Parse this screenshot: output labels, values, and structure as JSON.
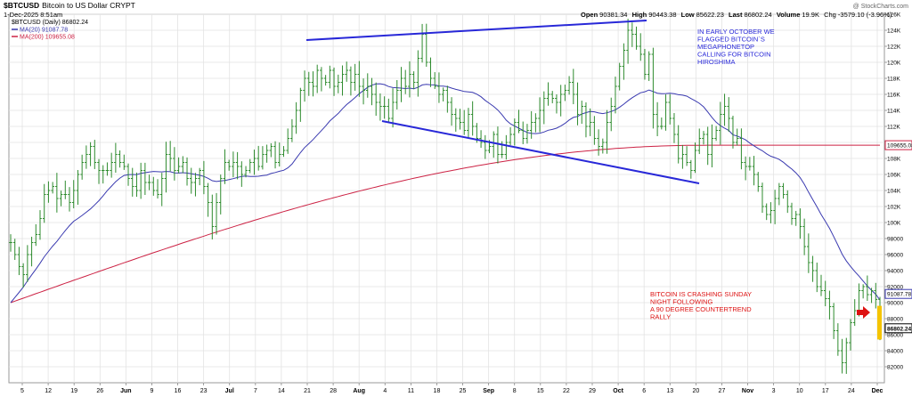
{
  "header": {
    "symbol": "$BTCUSD",
    "name": "Bitcoin to US Dollar  CRYPT",
    "date": "1-Dec-2025 8:51am",
    "watermark": "@ StockCharts.com",
    "quote": {
      "open_label": "Open",
      "open": "90381.34",
      "high_label": "High",
      "high": "90443.38",
      "low_label": "Low",
      "low": "85622.23",
      "last_label": "Last",
      "last": "86802.24",
      "volume_label": "Volume",
      "volume": "19.9K",
      "change": "Chg -3579.10 (-3.96%)"
    }
  },
  "legend": {
    "main": "$BTCUSD (Daily) 86802.24",
    "ma20": "MA(20) 91087.78",
    "ma200": "MA(200) 109655.08"
  },
  "colors": {
    "price_bar": "#2e8b2e",
    "ma20": "#3a3ab0",
    "ma200": "#cc2244",
    "trendline": "#2828d8",
    "note_blue": "#2828d8",
    "note_red": "#dd1111",
    "highlight": "#f5c400",
    "arrow": "#dd1111",
    "grid": "#e3e3e3"
  },
  "annotations": {
    "note_top": [
      "IN EARLY OCTOBER WE",
      "FLAGGED BITCOIN`S",
      "MEGAPHONETOP",
      "CALLING FOR BITCOIN",
      "HIROSHIMA"
    ],
    "note_bottom": [
      "BITCOIN IS CRASHING SUNDAY",
      "NIGHT FOLLOWING",
      "A 90 DEGREE COUNTERTREND",
      "RALLY"
    ]
  },
  "chart_data": {
    "type": "ohlc",
    "y_axis_side": "right",
    "ylim": [
      80000,
      126000
    ],
    "grid": true,
    "x_ticks": [
      "5",
      "12",
      "19",
      "26",
      "Jun",
      "9",
      "16",
      "23",
      "Jul",
      "7",
      "14",
      "21",
      "28",
      "Aug",
      "4",
      "11",
      "18",
      "25",
      "Sep",
      "8",
      "15",
      "22",
      "29",
      "Oct",
      "6",
      "13",
      "20",
      "27",
      "Nov",
      "3",
      "10",
      "17",
      "24",
      "Dec"
    ],
    "y_ticks": [
      "82000",
      "84000",
      "86000",
      "88000",
      "90000",
      "92000",
      "94000",
      "96000",
      "98000",
      "100K",
      "102K",
      "104K",
      "106K",
      "108K",
      "110K",
      "112K",
      "114K",
      "116K",
      "118K",
      "120K",
      "122K",
      "124K",
      "126K"
    ],
    "price_tags": {
      "ma200": {
        "value": 109655.08,
        "text": "109655.08"
      },
      "ma20": {
        "value": 91087.78,
        "text": "91087.78"
      },
      "last": {
        "value": 86802.24,
        "text": "86802.24"
      }
    },
    "closes": [
      97500,
      96000,
      94500,
      93500,
      96000,
      97500,
      98500,
      100500,
      103500,
      104000,
      104500,
      103000,
      103500,
      103500,
      102500,
      104000,
      106000,
      107500,
      108500,
      109500,
      107500,
      106500,
      106500,
      106500,
      107500,
      108500,
      107500,
      107000,
      105500,
      104500,
      104000,
      106500,
      105000,
      105000,
      104000,
      103500,
      105500,
      108500,
      108000,
      106500,
      107000,
      107500,
      105500,
      105000,
      105500,
      106500,
      104500,
      102500,
      99500,
      102500,
      105500,
      107500,
      107000,
      107500,
      107000,
      106000,
      106500,
      107500,
      108000,
      107000,
      108500,
      109000,
      109500,
      107500,
      108500,
      109000,
      110500,
      112000,
      114000,
      116500,
      118000,
      117500,
      117000,
      119000,
      118000,
      117500,
      119000,
      117000,
      117500,
      118500,
      119000,
      117500,
      118500,
      117000,
      116500,
      117000,
      116000,
      115000,
      114500,
      114500,
      113000,
      115000,
      116500,
      118000,
      117000,
      118500,
      117500,
      120500,
      123500,
      120000,
      118000,
      117000,
      116000,
      116500,
      115000,
      113500,
      113000,
      112500,
      111500,
      113500,
      112000,
      110500,
      110000,
      109000,
      109500,
      111000,
      108500,
      108500,
      110000,
      111000,
      112500,
      111500,
      110500,
      111500,
      112500,
      113000,
      114000,
      115500,
      116000,
      115500,
      115000,
      116000,
      116500,
      117500,
      116000,
      113500,
      114500,
      112000,
      112500,
      110500,
      109500,
      110000,
      112500,
      114500,
      117000,
      119500,
      121500,
      124000,
      123500,
      122000,
      121000,
      118500,
      121000,
      113500,
      112000,
      112000,
      115000,
      113000,
      111000,
      108000,
      108500,
      107500,
      106500,
      109000,
      110500,
      111000,
      108500,
      110500,
      111500,
      113500,
      114500,
      113000,
      110000,
      110500,
      107500,
      107000,
      107000,
      106000,
      104500,
      102000,
      101000,
      101500,
      103000,
      104500,
      103500,
      102000,
      100500,
      101000,
      99500,
      97000,
      95000,
      94000,
      92000,
      91500,
      90500,
      89500,
      86500,
      84000,
      82500,
      85000,
      87500,
      89000,
      91500,
      92000,
      91000,
      91500,
      90400,
      86802
    ]
  }
}
